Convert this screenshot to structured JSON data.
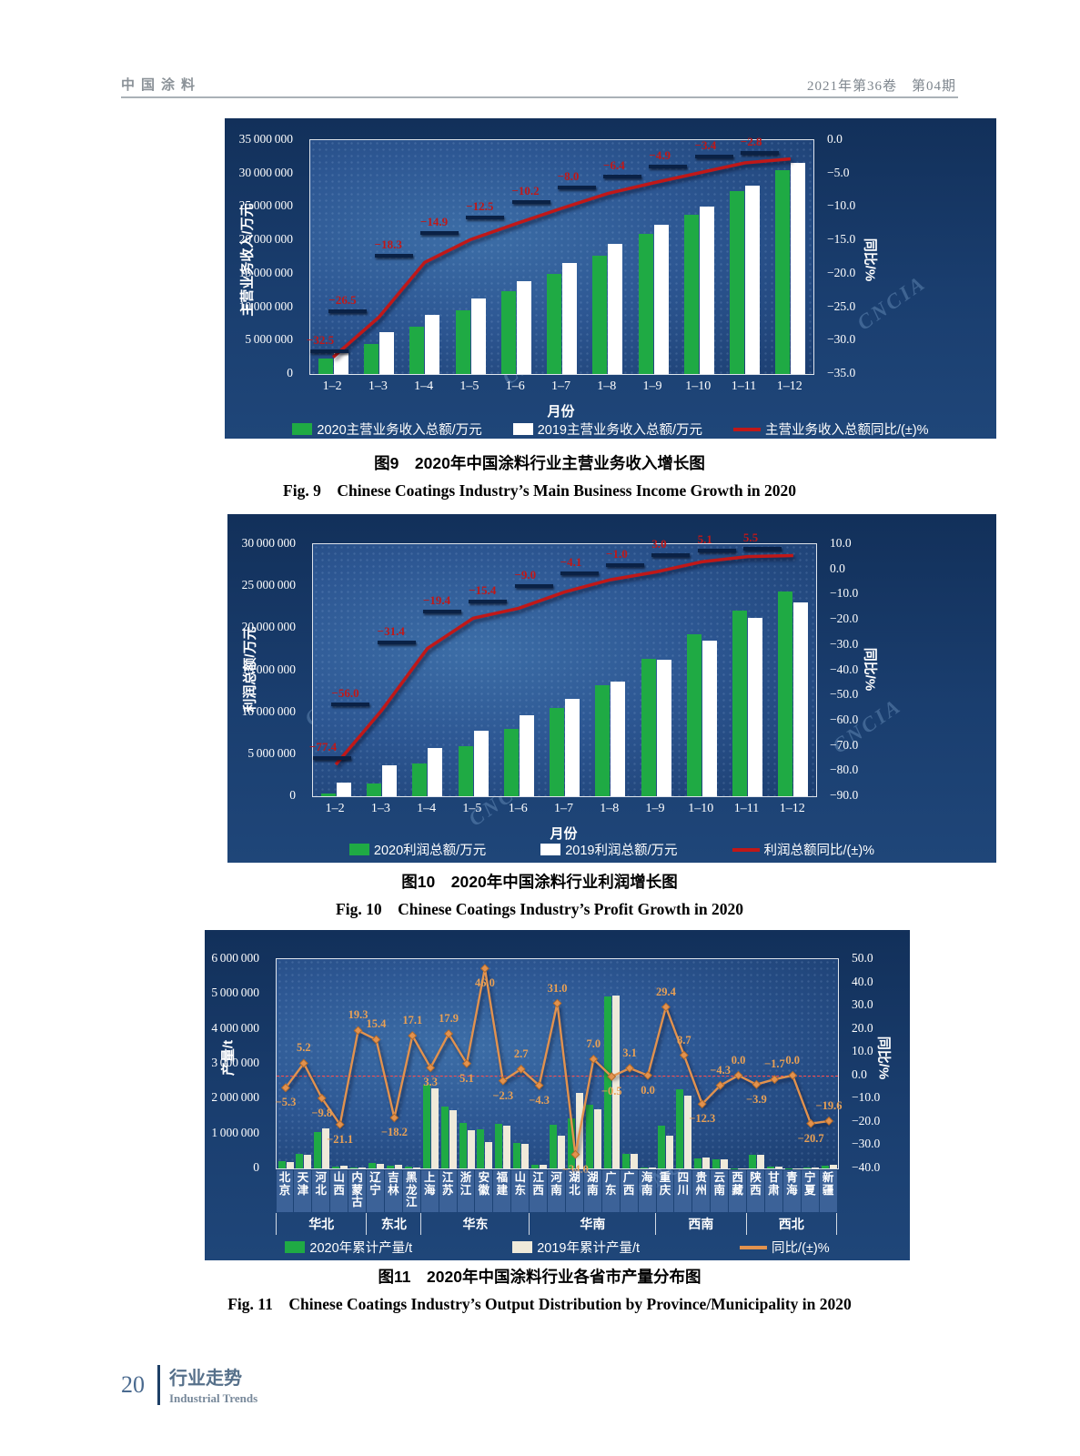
{
  "header": {
    "journal": "中国涂料",
    "issue": "2021年第36卷　第04期"
  },
  "footer": {
    "page_number": "20",
    "section_cn": "行业走势",
    "section_en": "Industrial Trends"
  },
  "watermark": "CNCIA",
  "chart_data": [
    {
      "id": "fig9",
      "type": "bar+line",
      "caption_cn": "图9　2020年中国涂料行业主营业务收入增长图",
      "caption_en": "Fig. 9　Chinese Coatings Industry’s Main Business Income Growth in 2020",
      "categories": [
        "1–2",
        "1–3",
        "1–4",
        "1–5",
        "1–6",
        "1–7",
        "1–8",
        "1–9",
        "1–10",
        "1–11",
        "1–12"
      ],
      "xlabel": "月份",
      "ylabel_left": "主营业务收入/万元",
      "ylabel_right": "同比/%",
      "ylim_left": [
        0,
        35000000
      ],
      "ytick_step_left": 5000000,
      "ylim_right": [
        -35,
        0
      ],
      "ytick_step_right": 5,
      "grid": false,
      "legend_position": "bottom",
      "series": [
        {
          "name": "2020主营业务收入总额/万元",
          "type": "bar",
          "color": "#1faa44",
          "values": [
            2300000,
            4500000,
            7100000,
            9600000,
            12400000,
            15000000,
            17700000,
            21000000,
            23800000,
            27400000,
            30500000
          ]
        },
        {
          "name": "2019主营业务收入总额/万元",
          "type": "bar",
          "color": "#ffffff",
          "values": [
            3400000,
            6300000,
            8900000,
            11300000,
            13900000,
            16600000,
            19500000,
            22300000,
            25100000,
            28200000,
            31600000
          ]
        },
        {
          "name": "主营业务收入总额同比/(±)%",
          "type": "line",
          "axis": "right",
          "color": "#c01818",
          "values": [
            -32.5,
            -26.5,
            -18.3,
            -14.9,
            -12.5,
            -10.2,
            -8.0,
            -6.4,
            -4.9,
            -3.4,
            -2.8
          ]
        }
      ]
    },
    {
      "id": "fig10",
      "type": "bar+line",
      "caption_cn": "图10　2020年中国涂料行业利润增长图",
      "caption_en": "Fig. 10　Chinese Coatings Industry’s Profit Growth in 2020",
      "categories": [
        "1–2",
        "1–3",
        "1–4",
        "1–5",
        "1–6",
        "1–7",
        "1–8",
        "1–9",
        "1–10",
        "1–11",
        "1–12"
      ],
      "xlabel": "月份",
      "ylabel_left": "利润总额/万元",
      "ylabel_right": "同比/%",
      "ylim_left": [
        0,
        30000000
      ],
      "ytick_step_left": 5000000,
      "ylim_right": [
        -90,
        10
      ],
      "ytick_step_right": 10,
      "grid": false,
      "legend_position": "bottom",
      "series": [
        {
          "name": "2020利润总额/万元",
          "type": "bar",
          "color": "#1faa44",
          "values": [
            350000,
            1550000,
            3900000,
            6000000,
            8000000,
            10500000,
            13200000,
            16400000,
            19300000,
            22100000,
            24400000
          ]
        },
        {
          "name": "2019利润总额/万元",
          "type": "bar",
          "color": "#ffffff",
          "values": [
            1650000,
            3700000,
            5700000,
            7800000,
            9600000,
            11600000,
            13700000,
            16300000,
            18500000,
            21200000,
            23100000
          ]
        },
        {
          "name": "利润总额同比/(±)%",
          "type": "line",
          "axis": "right",
          "color": "#c01818",
          "values": [
            -77.4,
            -56.0,
            -31.4,
            -19.4,
            -15.4,
            -9.0,
            -4.1,
            -1.0,
            3.0,
            5.1,
            5.5
          ]
        }
      ]
    },
    {
      "id": "fig11",
      "type": "bar+line",
      "caption_cn": "图11　2020年中国涂料行业各省市产量分布图",
      "caption_en": "Fig. 11　Chinese Coatings Industry’s Output Distribution by Province/Municipality in 2020",
      "categories": [
        "北京",
        "天津",
        "河北",
        "山西",
        "内蒙古",
        "辽宁",
        "吉林",
        "黑龙江",
        "上海",
        "江苏",
        "浙江",
        "安徽",
        "福建",
        "山东",
        "江西",
        "河南",
        "湖北",
        "湖南",
        "广东",
        "广西",
        "海南",
        "重庆",
        "四川",
        "贵州",
        "云南",
        "西藏",
        "陕西",
        "甘肃",
        "青海",
        "宁夏",
        "新疆"
      ],
      "regions": [
        {
          "label": "华北",
          "span": 5
        },
        {
          "label": "东北",
          "span": 3
        },
        {
          "label": "华东",
          "span": 6
        },
        {
          "label": "华南",
          "span": 7
        },
        {
          "label": "西南",
          "span": 5
        },
        {
          "label": "西北",
          "span": 5
        }
      ],
      "ylabel_left": "产量/t",
      "ylabel_right": "同比/%",
      "ylim_left": [
        0,
        6000000
      ],
      "ytick_step_left": 1000000,
      "ylim_right": [
        -40,
        50
      ],
      "ytick_step_right": 10,
      "zero_line": true,
      "grid": false,
      "legend_position": "bottom",
      "series": [
        {
          "name": "2020年累计产量/t",
          "type": "bar",
          "color": "#1faa44",
          "values": [
            200000,
            420000,
            1050000,
            60000,
            40000,
            160000,
            90000,
            50000,
            2390000,
            1780000,
            1300000,
            1130000,
            1280000,
            740000,
            110000,
            1250000,
            1430000,
            1830000,
            4930000,
            420000,
            20000,
            1230000,
            2280000,
            280000,
            250000,
            5000,
            380000,
            50000,
            10000,
            30000,
            80000
          ]
        },
        {
          "name": "2019年累计产量/t",
          "type": "bar",
          "color": "#efeada",
          "values": [
            180000,
            380000,
            1150000,
            80000,
            30000,
            140000,
            110000,
            40000,
            2290000,
            1680000,
            1100000,
            760000,
            1220000,
            700000,
            110000,
            940000,
            2170000,
            1710000,
            4960000,
            410000,
            20000,
            940000,
            2080000,
            310000,
            260000,
            5000,
            400000,
            50000,
            10000,
            40000,
            100000
          ]
        },
        {
          "name": "同比/(±)%",
          "type": "line",
          "axis": "right",
          "color": "#e2924e",
          "values": [
            -5.3,
            5.2,
            -9.8,
            -21.1,
            19.3,
            15.4,
            -18.2,
            17.1,
            3.3,
            17.9,
            5.1,
            46.0,
            -2.3,
            2.7,
            -4.3,
            31.0,
            -34.0,
            7.0,
            -0.5,
            3.1,
            0.0,
            29.4,
            8.7,
            -12.3,
            -4.3,
            0.0,
            -3.9,
            -1.7,
            0.0,
            -20.7,
            -19.6
          ]
        }
      ]
    }
  ]
}
